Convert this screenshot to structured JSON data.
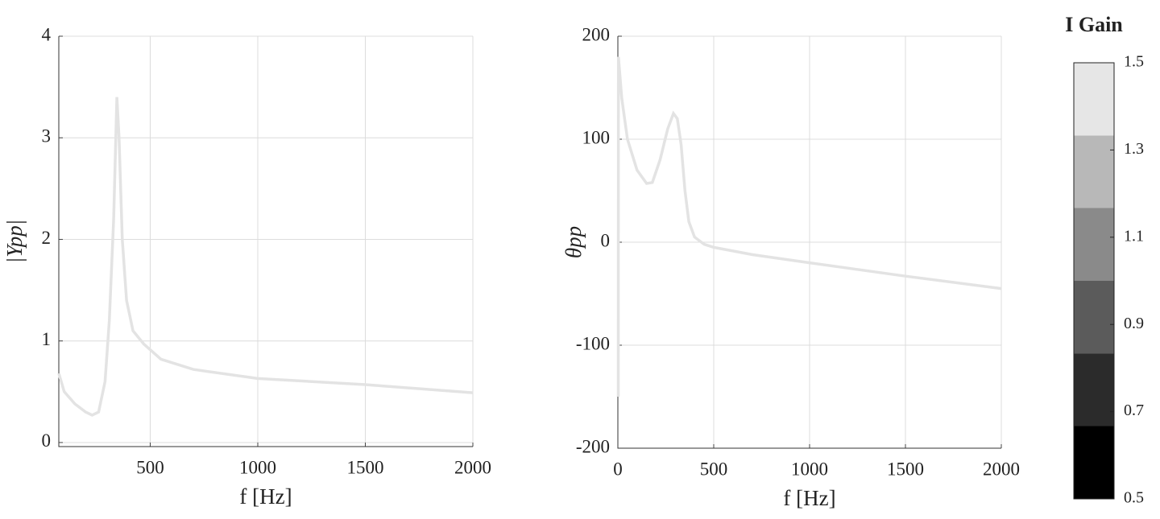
{
  "chart_data": [
    {
      "type": "line",
      "xlabel": "f [Hz]",
      "ylabel": "|Ypp|",
      "x": [
        75,
        100,
        150,
        200,
        230,
        260,
        290,
        310,
        330,
        345,
        355,
        370,
        390,
        420,
        470,
        550,
        700,
        1000,
        1500,
        2000
      ],
      "series": [
        {
          "color": "#e3e3e3",
          "values": [
            0.68,
            0.5,
            0.38,
            0.3,
            0.27,
            0.3,
            0.6,
            1.2,
            2.2,
            3.4,
            3.0,
            2.0,
            1.4,
            1.1,
            0.97,
            0.82,
            0.72,
            0.63,
            0.57,
            0.49
          ]
        }
      ],
      "xlim": [
        75,
        2000
      ],
      "xticks": [
        500,
        1000,
        1500,
        2000
      ],
      "ylim": [
        -0.04,
        4
      ],
      "yticks": [
        0,
        1,
        2,
        3,
        4
      ],
      "grid": true
    },
    {
      "type": "line",
      "xlabel": "f [Hz]",
      "ylabel": "θpp",
      "x": [
        2,
        3,
        20,
        50,
        100,
        150,
        180,
        220,
        260,
        290,
        310,
        330,
        350,
        370,
        400,
        450,
        500,
        700,
        1000,
        1500,
        2000
      ],
      "series": [
        {
          "color": "#e3e3e3",
          "values": [
            -150,
            180,
            140,
            100,
            70,
            57,
            58,
            80,
            110,
            125,
            120,
            95,
            50,
            20,
            5,
            -2,
            -5,
            -12,
            -20,
            -33,
            -45
          ]
        }
      ],
      "xlim": [
        0,
        2000
      ],
      "xticks": [
        0,
        500,
        1000,
        1500,
        2000
      ],
      "ylim": [
        -200,
        200
      ],
      "yticks": [
        -200,
        -100,
        0,
        100,
        200
      ],
      "grid": true
    },
    {
      "type": "colorbar",
      "title": "I Gain",
      "levels": [
        0.5,
        0.667,
        0.833,
        1.0,
        1.167,
        1.333,
        1.5
      ],
      "colors": [
        "#000000",
        "#2b2b2b",
        "#5b5b5b",
        "#8a8a8a",
        "#b8b8b8",
        "#e6e6e6"
      ],
      "ylim": [
        0.5,
        1.5
      ],
      "yticks": [
        0.5,
        0.7,
        0.9,
        1.1,
        1.3,
        1.5
      ]
    }
  ]
}
